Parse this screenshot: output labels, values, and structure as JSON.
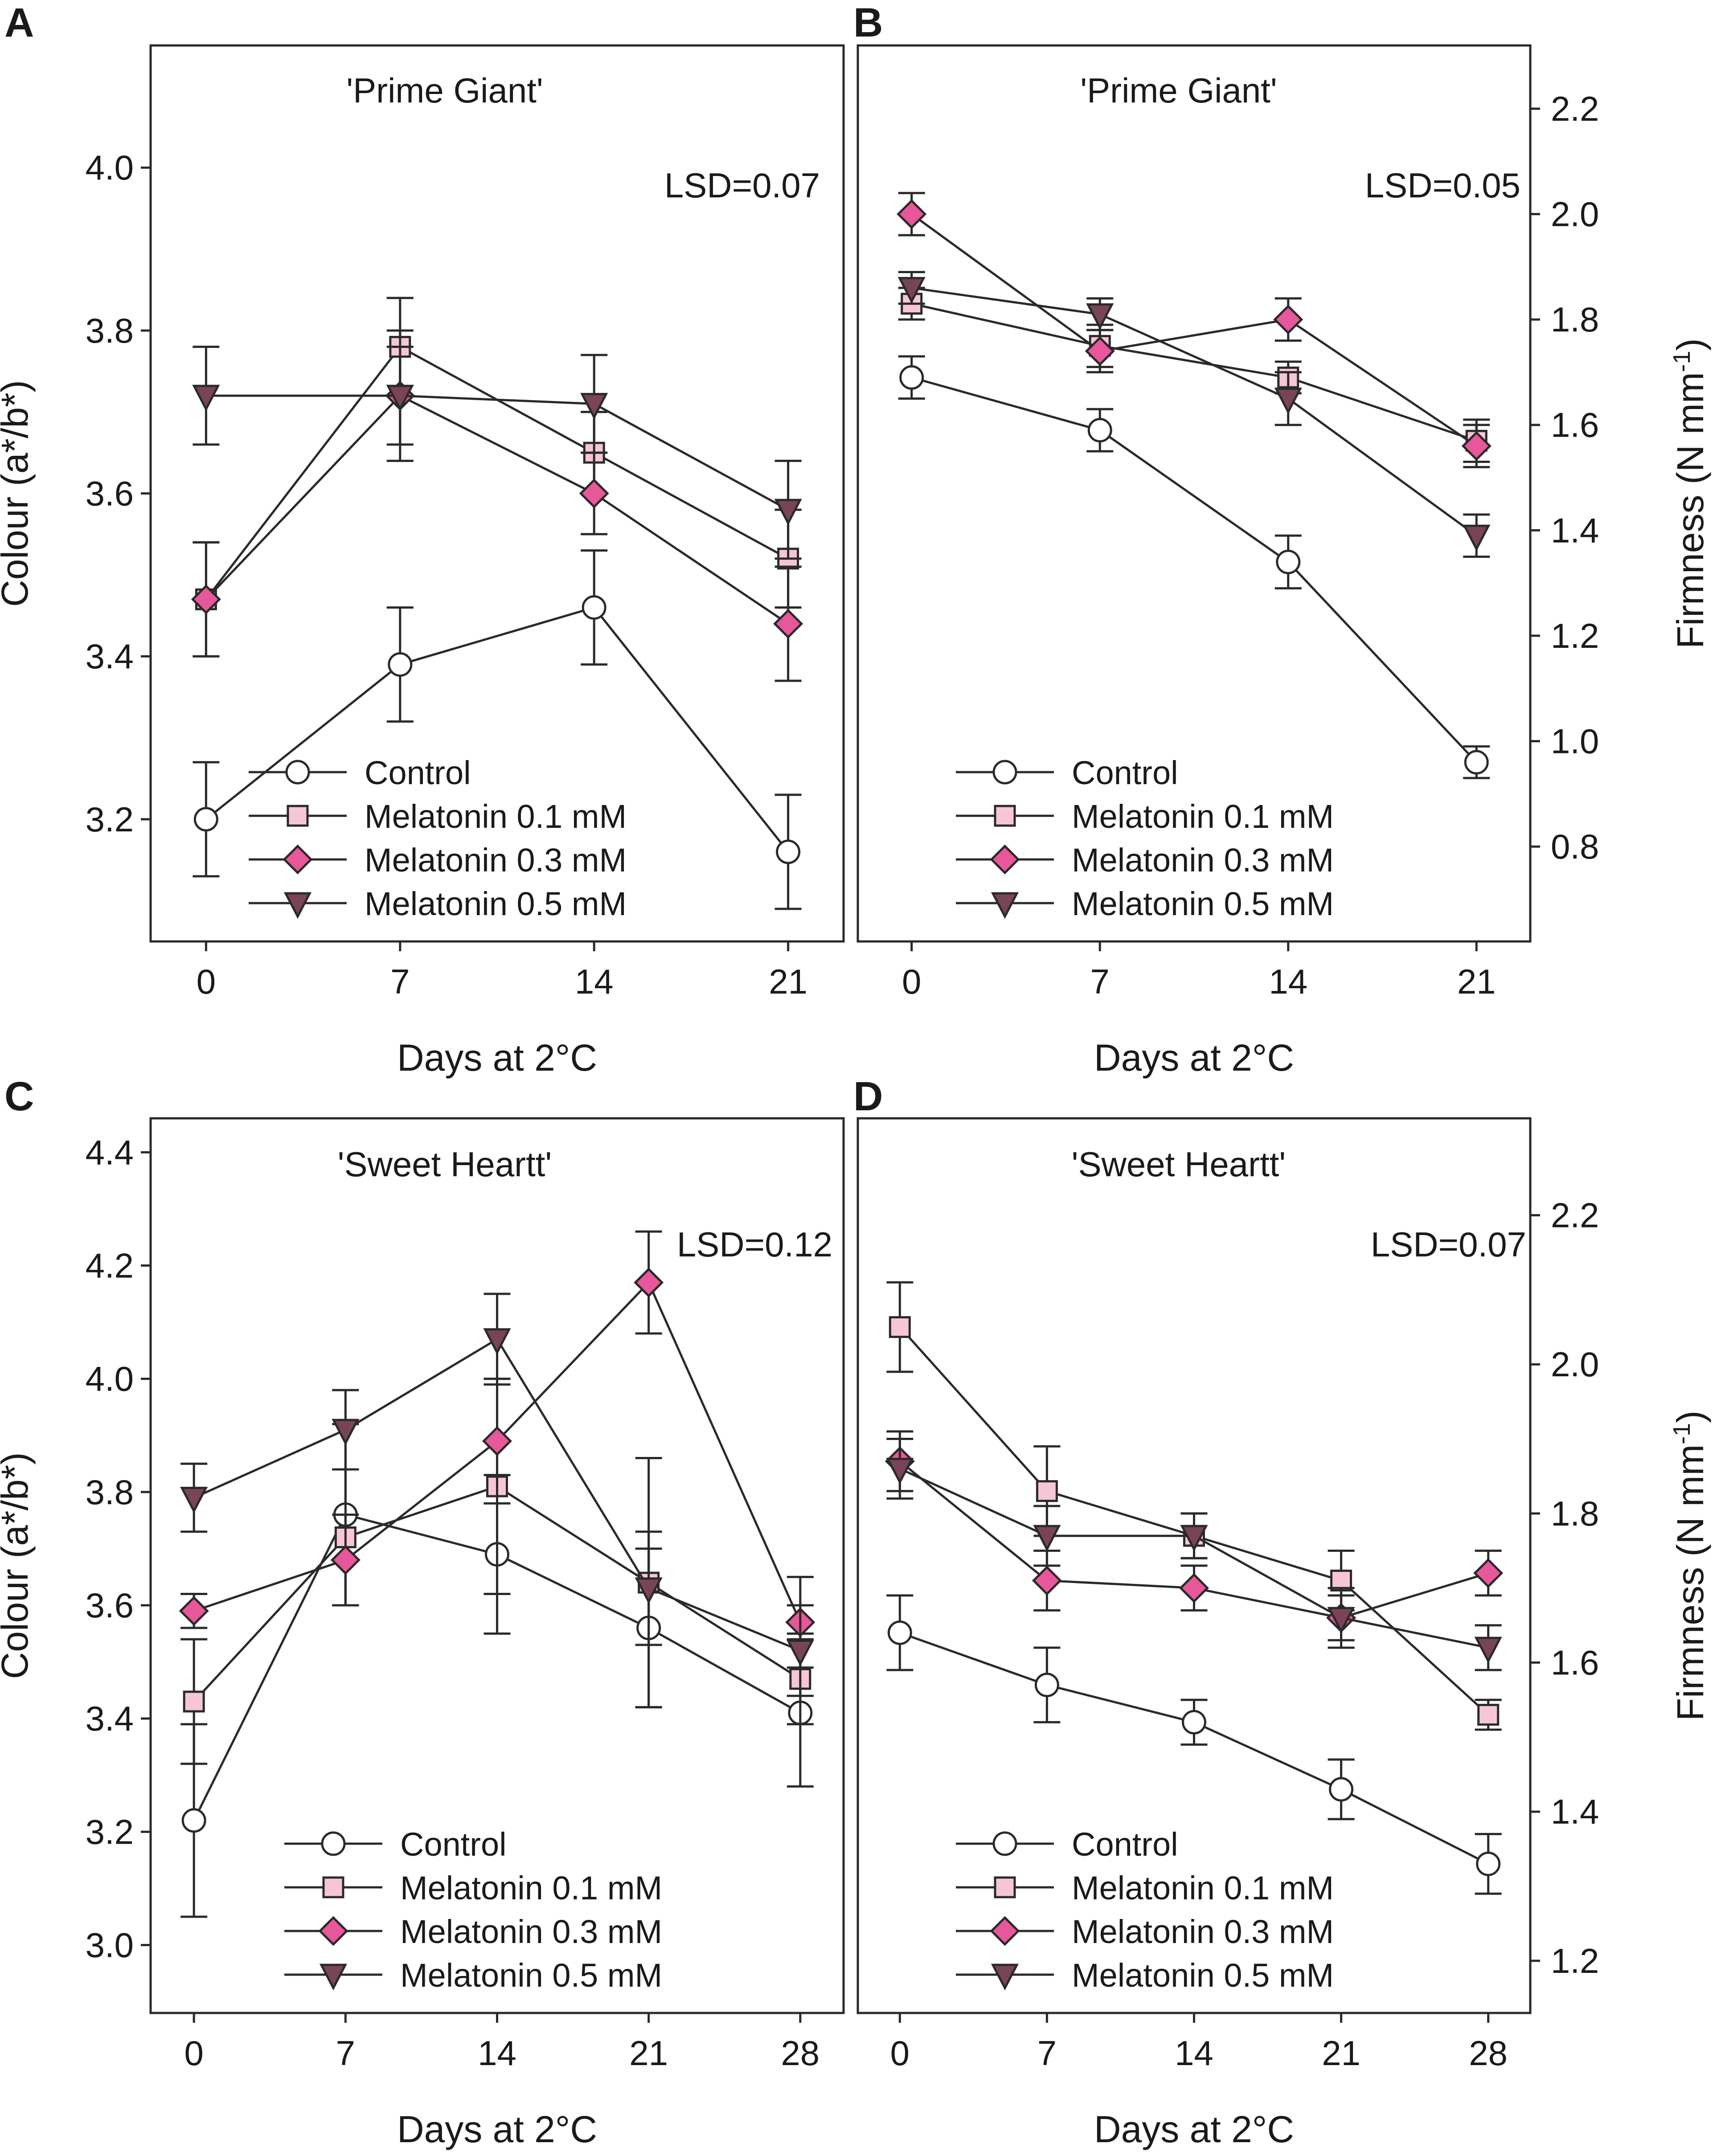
{
  "legend_labels": [
    "Control",
    "Melatonin 0.1 mM",
    "Melatonin 0.3 mM",
    "Melatonin 0.5 mM"
  ],
  "series_styles": [
    {
      "marker": "circle",
      "fill": "#ffffff"
    },
    {
      "marker": "square",
      "fill": "#f6c6d6"
    },
    {
      "marker": "diamond",
      "fill": "#e8579a"
    },
    {
      "marker": "triangle-down",
      "fill": "#7a4458"
    }
  ],
  "colors": {
    "stroke": "#2a2a2a",
    "text": "#1a1a1a",
    "background": "#ffffff"
  },
  "chart_data": [
    {
      "panel": "A",
      "type": "line",
      "cultivar": "'Prime Giant'",
      "lsd": "LSD=0.07",
      "xlabel": "Days at 2°C",
      "ylabel": "Colour (a*/b*)",
      "y_axis_side": "left",
      "x": [
        0,
        7,
        14,
        21
      ],
      "xlim": [
        -2,
        23
      ],
      "ylim": [
        3.05,
        4.15
      ],
      "yticks": [
        3.2,
        3.4,
        3.6,
        3.8,
        4.0
      ],
      "ytick_labels": [
        "3.2",
        "3.4",
        "3.6",
        "3.8",
        "4.0"
      ],
      "legend_pos": "bottom-left",
      "series": [
        {
          "name": "Control",
          "x": [
            0,
            7,
            14,
            21
          ],
          "values": [
            3.2,
            3.39,
            3.46,
            3.16
          ],
          "err": [
            0.07,
            0.07,
            0.07,
            0.07
          ]
        },
        {
          "name": "Melatonin 0.1 mM",
          "x": [
            0,
            7,
            14,
            21
          ],
          "values": [
            3.47,
            3.78,
            3.65,
            3.52
          ],
          "err": [
            0.07,
            0.06,
            0.05,
            0.06
          ]
        },
        {
          "name": "Melatonin 0.3 mM",
          "x": [
            0,
            7,
            14,
            21
          ],
          "values": [
            3.47,
            3.72,
            3.6,
            3.44
          ],
          "err": [
            0.07,
            0.08,
            0.05,
            0.07
          ]
        },
        {
          "name": "Melatonin 0.5 mM",
          "x": [
            0,
            7,
            14,
            21
          ],
          "values": [
            3.72,
            3.72,
            3.71,
            3.58
          ],
          "err": [
            0.06,
            0.06,
            0.06,
            0.06
          ]
        }
      ]
    },
    {
      "panel": "B",
      "type": "line",
      "cultivar": "'Prime Giant'",
      "lsd": "LSD=0.05",
      "xlabel": "Days at 2°C",
      "ylabel": "Firmness (N mm",
      "ylabel_sup": "-1",
      "ylabel_end": ")",
      "y_axis_side": "right",
      "x": [
        0,
        7,
        14,
        21
      ],
      "xlim": [
        -2,
        23
      ],
      "ylim": [
        0.62,
        2.32
      ],
      "yticks": [
        0.8,
        1.0,
        1.2,
        1.4,
        1.6,
        1.8,
        2.0,
        2.2
      ],
      "ytick_labels": [
        "0.8",
        "1.0",
        "1.2",
        "1.4",
        "1.6",
        "1.8",
        "2.0",
        "2.2"
      ],
      "legend_pos": "bottom-left",
      "series": [
        {
          "name": "Control",
          "x": [
            0,
            7,
            14,
            21
          ],
          "values": [
            1.69,
            1.59,
            1.34,
            0.96
          ],
          "err": [
            0.04,
            0.04,
            0.05,
            0.03
          ]
        },
        {
          "name": "Melatonin 0.1 mM",
          "x": [
            0,
            7,
            14,
            21
          ],
          "values": [
            1.83,
            1.75,
            1.69,
            1.57
          ],
          "err": [
            0.03,
            0.04,
            0.03,
            0.04
          ]
        },
        {
          "name": "Melatonin 0.3 mM",
          "x": [
            0,
            7,
            14,
            21
          ],
          "values": [
            2.0,
            1.74,
            1.8,
            1.56
          ],
          "err": [
            0.04,
            0.04,
            0.04,
            0.04
          ]
        },
        {
          "name": "Melatonin 0.5 mM",
          "x": [
            0,
            7,
            14,
            21
          ],
          "values": [
            1.86,
            1.81,
            1.65,
            1.39
          ],
          "err": [
            0.03,
            0.03,
            0.05,
            0.04
          ]
        }
      ]
    },
    {
      "panel": "C",
      "type": "line",
      "cultivar": "'Sweet Heartt'",
      "lsd": "LSD=0.12",
      "xlabel": "Days at 2°C",
      "ylabel": "Colour (a*/b*)",
      "y_axis_side": "left",
      "x": [
        0,
        7,
        14,
        21,
        28
      ],
      "xlim": [
        -2,
        30
      ],
      "ylim": [
        2.88,
        4.46
      ],
      "yticks": [
        3.0,
        3.2,
        3.4,
        3.6,
        3.8,
        4.0,
        4.2,
        4.4
      ],
      "ytick_labels": [
        "3.0",
        "3.2",
        "3.4",
        "3.6",
        "3.8",
        "4.0",
        "4.2",
        "4.4"
      ],
      "legend_pos": "bottom-right",
      "series": [
        {
          "name": "Control",
          "x": [
            0,
            7,
            14,
            21,
            28
          ],
          "values": [
            3.22,
            3.76,
            3.69,
            3.56,
            3.41
          ],
          "err": [
            0.17,
            0.16,
            0.14,
            0.14,
            0.13
          ]
        },
        {
          "name": "Melatonin 0.1 mM",
          "x": [
            0,
            7,
            14,
            21,
            28
          ],
          "values": [
            3.43,
            3.72,
            3.81,
            3.64,
            3.47
          ],
          "err": [
            0.11,
            0.12,
            0.19,
            0.22,
            0.08
          ]
        },
        {
          "name": "Melatonin 0.3 mM",
          "x": [
            0,
            7,
            14,
            21,
            28
          ],
          "values": [
            3.59,
            3.68,
            3.89,
            4.17,
            3.57
          ],
          "err": [
            0.03,
            0.08,
            0.11,
            0.09,
            0.08
          ]
        },
        {
          "name": "Melatonin 0.5 mM",
          "x": [
            0,
            7,
            14,
            21,
            28
          ],
          "values": [
            3.79,
            3.91,
            4.07,
            3.63,
            3.52
          ],
          "err": [
            0.06,
            0.07,
            0.08,
            0.1,
            0.08
          ]
        }
      ]
    },
    {
      "panel": "D",
      "type": "line",
      "cultivar": "'Sweet Heartt'",
      "lsd": "LSD=0.07",
      "xlabel": "Days at 2°C",
      "ylabel": "Firmness (N mm",
      "ylabel_sup": "-1",
      "ylabel_end": ")",
      "y_axis_side": "right",
      "x": [
        0,
        7,
        14,
        21,
        28
      ],
      "xlim": [
        -2,
        30
      ],
      "ylim": [
        1.13,
        2.33
      ],
      "yticks": [
        1.2,
        1.4,
        1.6,
        1.8,
        2.0,
        2.2
      ],
      "ytick_labels": [
        "1.2",
        "1.4",
        "1.6",
        "1.8",
        "2.0",
        "2.2"
      ],
      "legend_pos": "bottom-left",
      "series": [
        {
          "name": "Control",
          "x": [
            0,
            7,
            14,
            21,
            28
          ],
          "values": [
            1.64,
            1.57,
            1.52,
            1.43,
            1.33
          ],
          "err": [
            0.05,
            0.05,
            0.03,
            0.04,
            0.04
          ]
        },
        {
          "name": "Melatonin 0.1 mM",
          "x": [
            0,
            7,
            14,
            21,
            28
          ],
          "values": [
            2.05,
            1.83,
            1.77,
            1.71,
            1.53
          ],
          "err": [
            0.06,
            0.06,
            0.03,
            0.04,
            0.02
          ]
        },
        {
          "name": "Melatonin 0.3 mM",
          "x": [
            0,
            7,
            14,
            21,
            28
          ],
          "values": [
            1.87,
            1.71,
            1.7,
            1.66,
            1.72
          ],
          "err": [
            0.04,
            0.04,
            0.03,
            0.04,
            0.03
          ]
        },
        {
          "name": "Melatonin 0.5 mM",
          "x": [
            0,
            7,
            14,
            21,
            28
          ],
          "values": [
            1.86,
            1.77,
            1.77,
            1.66,
            1.62
          ],
          "err": [
            0.04,
            0.04,
            0.03,
            0.03,
            0.03
          ]
        }
      ]
    }
  ]
}
